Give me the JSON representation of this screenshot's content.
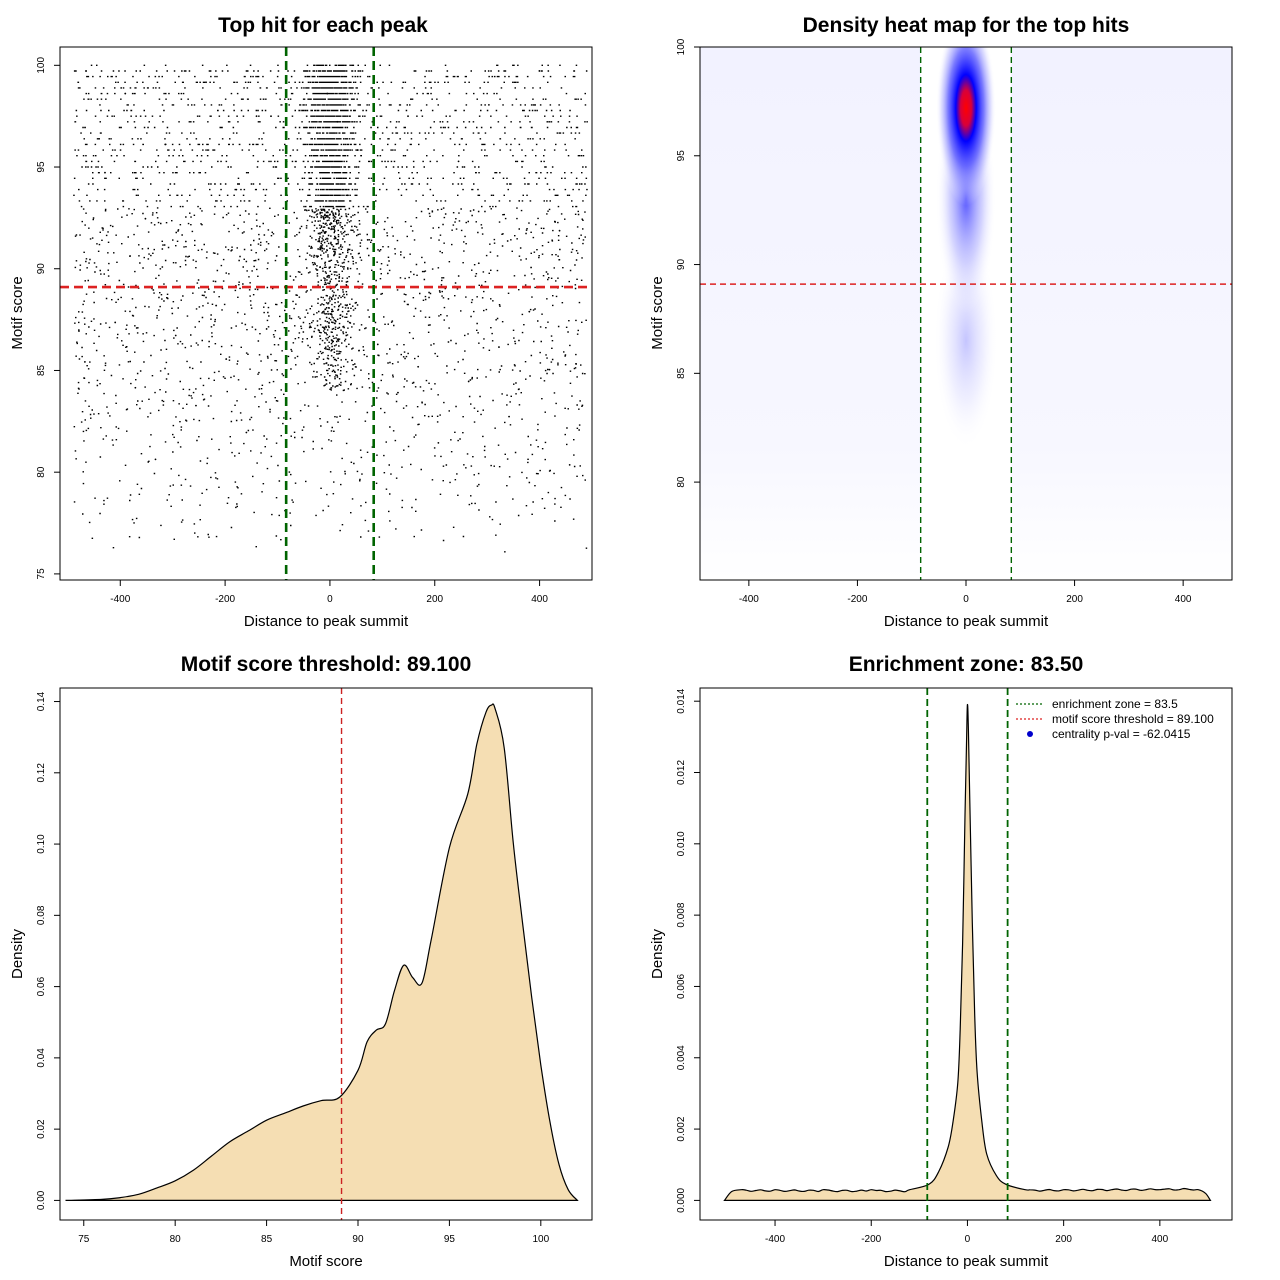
{
  "chart_data": [
    {
      "type": "scatter",
      "title": "Top hit for each peak",
      "xlabel": "Distance to peak summit",
      "ylabel": "Motif score",
      "xlim": [
        -500,
        500
      ],
      "ylim": [
        75,
        100
      ],
      "xticks": [
        -400,
        -200,
        0,
        200,
        400
      ],
      "yticks": [
        75,
        80,
        85,
        90,
        95,
        100
      ],
      "hlines": [
        {
          "y": 89.1,
          "color": "#dd2222",
          "style": "dashed"
        }
      ],
      "vlines": [
        {
          "x": -83.5,
          "color": "#006400",
          "style": "dashed"
        },
        {
          "x": 83.5,
          "color": "#006400",
          "style": "dashed"
        }
      ],
      "point_color": "#000000",
      "point_count": 5200,
      "points": [
        [
          -467.5,
          85.42
        ],
        [
          -448.3,
          89.84
        ],
        [
          -429.2,
          94.66
        ],
        [
          -409.7,
          87.36
        ],
        [
          -390.5,
          98.71
        ],
        [
          -371.2,
          84.15
        ],
        [
          -352.0,
          92.46
        ],
        [
          -332.8,
          80.63
        ],
        [
          -313.4,
          96.13
        ],
        [
          -294.2,
          86.72
        ],
        [
          -274.9,
          91.34
        ],
        [
          -255.6,
          83.27
        ],
        [
          -236.3,
          99.24
        ],
        [
          -217.1,
          88.19
        ],
        [
          -197.9,
          85.56
        ],
        [
          -178.6,
          93.82
        ],
        [
          -159.4,
          81.95
        ],
        [
          -140.0,
          97.38
        ],
        [
          -120.8,
          87.04
        ],
        [
          -101.6,
          90.63
        ],
        [
          -82.3,
          95.17
        ],
        [
          -63.0,
          92.48
        ],
        [
          -43.8,
          96.84
        ],
        [
          -24.4,
          94.12
        ],
        [
          -5.1,
          98.55
        ],
        [
          14.1,
          97.21
        ],
        [
          33.4,
          93.66
        ],
        [
          52.7,
          95.83
        ],
        [
          72.0,
          91.42
        ],
        [
          91.3,
          86.28
        ],
        [
          110.5,
          89.77
        ],
        [
          129.8,
          83.91
        ],
        [
          149.0,
          97.62
        ],
        [
          168.3,
          85.18
        ],
        [
          187.6,
          92.94
        ],
        [
          206.9,
          81.44
        ],
        [
          226.1,
          88.52
        ],
        [
          245.4,
          95.33
        ],
        [
          264.7,
          84.46
        ],
        [
          284.0,
          90.27
        ],
        [
          303.3,
          98.06
        ],
        [
          322.5,
          86.15
        ],
        [
          341.8,
          82.73
        ],
        [
          361.1,
          93.41
        ],
        [
          380.4,
          87.89
        ],
        [
          399.6,
          99.62
        ],
        [
          418.9,
          85.04
        ],
        [
          438.1,
          91.87
        ],
        [
          457.4,
          80.36
        ],
        [
          476.7,
          94.21
        ]
      ]
    },
    {
      "type": "heatmap",
      "title": "Density heat map for the top hits",
      "xlabel": "Distance to peak summit",
      "ylabel": "Motif score",
      "xlim": [
        -490,
        490
      ],
      "ylim": [
        75.5,
        100
      ],
      "xticks": [
        -400,
        -200,
        0,
        200,
        400
      ],
      "yticks": [
        80,
        85,
        90,
        95,
        100
      ],
      "colors": [
        "#ffffff",
        "#0000ff",
        "#ff0000"
      ],
      "hotspot": {
        "x": 0,
        "y": 97.2
      },
      "hlines": [
        {
          "y": 89.1,
          "color": "#dd2222",
          "style": "dashed"
        }
      ],
      "vlines": [
        {
          "x": -83.5,
          "color": "#006400",
          "style": "dashed"
        },
        {
          "x": 83.5,
          "color": "#006400",
          "style": "dashed"
        }
      ]
    },
    {
      "type": "area",
      "title": "Motif score threshold: 89.100",
      "xlabel": "Motif score",
      "ylabel": "Density",
      "xlim": [
        74,
        102
      ],
      "ylim": [
        0,
        0.14
      ],
      "xticks": [
        75,
        80,
        85,
        90,
        95,
        100
      ],
      "yticks": [
        0.0,
        0.02,
        0.04,
        0.06,
        0.08,
        0.1,
        0.12,
        0.14
      ],
      "ytick_labels": [
        "0.00",
        "0.02",
        "0.04",
        "0.06",
        "0.08",
        "0.10",
        "0.12",
        "0.14"
      ],
      "fill": "#f5deb3",
      "vlines": [
        {
          "x": 89.1,
          "color": "#cc2222",
          "style": "dashed"
        }
      ],
      "x": [
        74.0,
        76.0,
        77.0,
        78.0,
        79.0,
        80.0,
        81.0,
        82.0,
        83.0,
        84.0,
        85.0,
        86.0,
        87.0,
        88.0,
        89.0,
        90.0,
        90.5,
        91.0,
        91.5,
        92.0,
        92.5,
        93.0,
        93.5,
        94.0,
        95.0,
        96.0,
        96.5,
        97.0,
        97.3,
        97.5,
        98.0,
        98.5,
        99.0,
        99.5,
        100.0,
        100.5,
        101.0,
        101.5,
        102.0
      ],
      "y": [
        0.0,
        0.0003,
        0.0008,
        0.0017,
        0.0035,
        0.0055,
        0.0085,
        0.0125,
        0.0165,
        0.0195,
        0.0225,
        0.0245,
        0.0265,
        0.028,
        0.029,
        0.0365,
        0.0445,
        0.0478,
        0.0495,
        0.059,
        0.066,
        0.0625,
        0.061,
        0.073,
        0.099,
        0.114,
        0.128,
        0.137,
        0.139,
        0.138,
        0.127,
        0.1,
        0.078,
        0.057,
        0.038,
        0.022,
        0.01,
        0.003,
        0.0
      ]
    },
    {
      "type": "area",
      "title": "Enrichment zone: 83.50",
      "xlabel": "Distance to peak summit",
      "ylabel": "Density",
      "xlim": [
        -500,
        500
      ],
      "ylim": [
        0,
        0.014
      ],
      "xticks": [
        -400,
        -200,
        0,
        200,
        400
      ],
      "yticks": [
        0.0,
        0.002,
        0.004,
        0.006,
        0.008,
        0.01,
        0.012,
        0.014
      ],
      "ytick_labels": [
        "0.000",
        "0.002",
        "0.004",
        "0.006",
        "0.008",
        "0.010",
        "0.012",
        "0.014"
      ],
      "fill": "#f5deb3",
      "vlines": [
        {
          "x": -83.5,
          "color": "#006400",
          "style": "dashed"
        },
        {
          "x": 83.5,
          "color": "#006400",
          "style": "dashed"
        }
      ],
      "x": [
        -505,
        -490,
        -470,
        -400,
        -300,
        -200,
        -120,
        -80,
        -60,
        -40,
        -30,
        -20,
        -15,
        -10,
        -5,
        -2,
        0,
        2,
        5,
        10,
        15,
        20,
        30,
        40,
        60,
        80,
        120,
        200,
        300,
        400,
        480,
        495,
        505
      ],
      "y": [
        0.0,
        0.00025,
        0.0003,
        0.0003,
        0.0003,
        0.0003,
        0.0003,
        0.00045,
        0.0008,
        0.0015,
        0.0022,
        0.0033,
        0.0048,
        0.0072,
        0.0108,
        0.0128,
        0.0139,
        0.0132,
        0.0112,
        0.0078,
        0.0052,
        0.0036,
        0.0022,
        0.0013,
        0.0007,
        0.00045,
        0.0003,
        0.0003,
        0.0003,
        0.0003,
        0.0003,
        0.0002,
        0.0
      ],
      "legend": {
        "placement": "top-right",
        "entries": [
          {
            "label": "enrichment zone = 83.5",
            "color": "#006400",
            "symbol": "line"
          },
          {
            "label": "motif score threshold = 89.100",
            "color": "#dd2222",
            "symbol": "line"
          },
          {
            "label": "centrality p-val = -62.0415",
            "color": "#0000cc",
            "symbol": "point"
          }
        ]
      }
    }
  ]
}
